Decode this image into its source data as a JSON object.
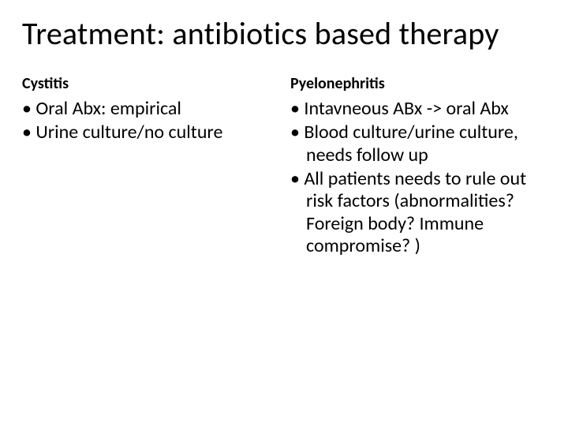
{
  "title": "Treatment: antibiotics based therapy",
  "left": {
    "heading": "Cystitis",
    "bullets": [
      "Oral Abx: empirical",
      "Urine culture/no culture"
    ]
  },
  "right": {
    "heading": "Pyelonephritis",
    "bullets": [
      "Intavneous ABx -> oral Abx",
      "Blood culture/urine culture, needs follow up",
      "All patients needs to rule out risk factors (abnormalities? Foreign body? Immune compromise? )"
    ]
  },
  "colors": {
    "background": "#ffffff",
    "text": "#000000"
  },
  "typography": {
    "title_fontsize_pt": 40,
    "heading_fontsize_pt": 20,
    "body_fontsize_pt": 24,
    "font_family": "Calibri"
  }
}
